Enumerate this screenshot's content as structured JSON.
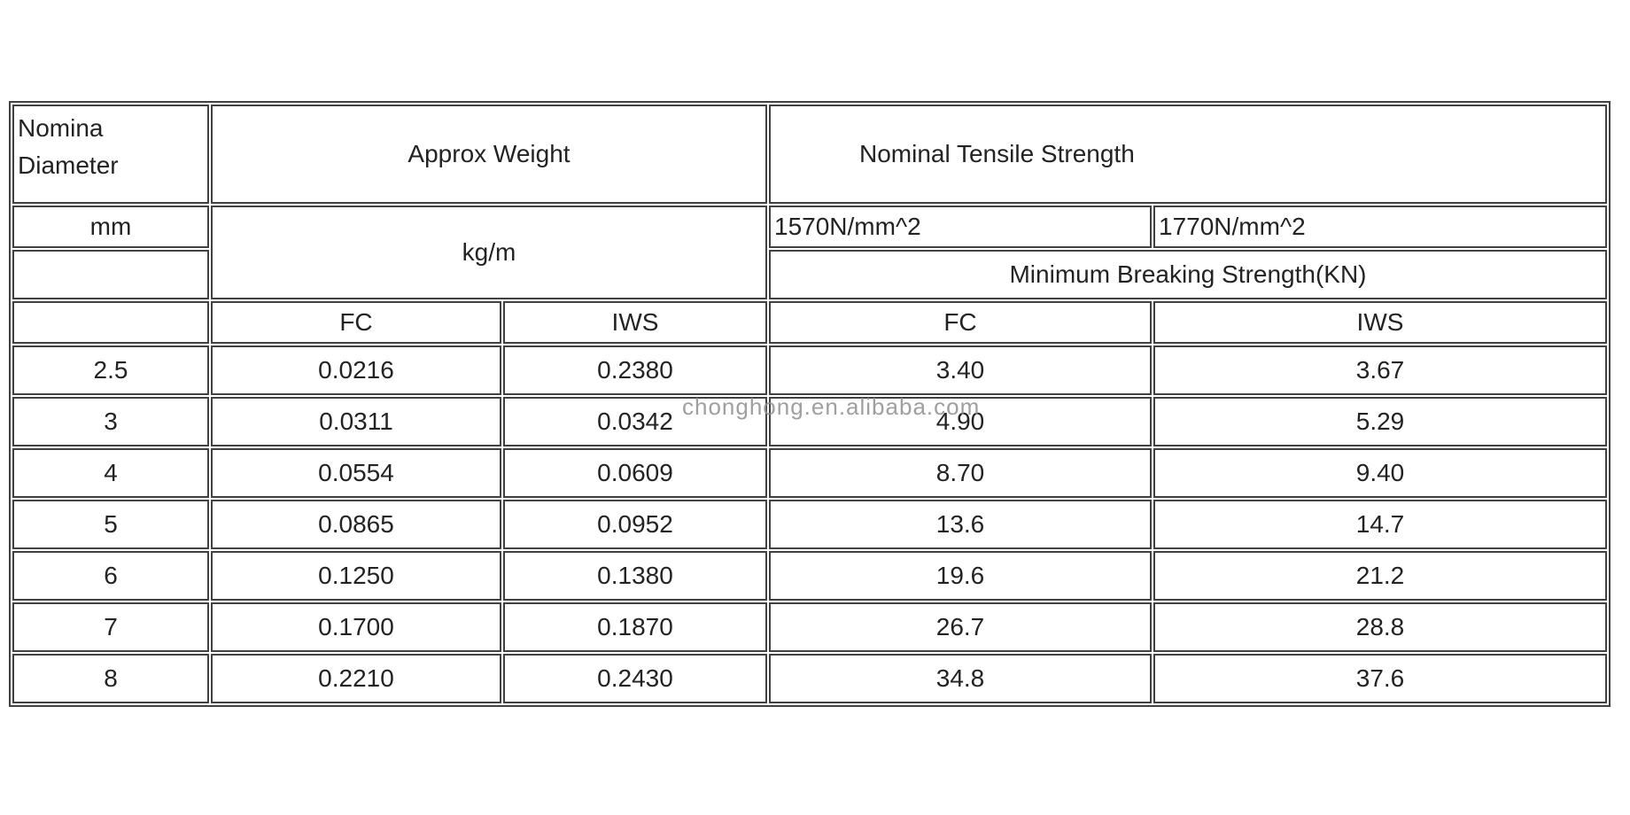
{
  "page": {
    "watermark": "chonghong.en.alibaba.com"
  },
  "colors": {
    "border": "#414141",
    "text": "#232323",
    "watermark": "#8f8f8f"
  },
  "table": {
    "headers": {
      "diameter_line1": "Nomina",
      "diameter_line2": "Diameter",
      "approx_weight": "Approx Weight",
      "tensile_strength": "Nominal Tensile Strength",
      "diameter_unit": "mm",
      "weight_unit": "kg/m",
      "grade_1570": "1570N/mm^2",
      "grade_1770": "1770N/mm^2",
      "breaking_strength": "Minimum Breaking Strength(KN)",
      "weight_fc": "FC",
      "weight_iws": "IWS",
      "strength_fc": "FC",
      "strength_iws": "IWS"
    },
    "rows": [
      {
        "diameter": "2.5",
        "weight_fc": "0.0216",
        "weight_iws": "0.2380",
        "strength_fc": "3.40",
        "strength_iws": "3.67"
      },
      {
        "diameter": "3",
        "weight_fc": "0.0311",
        "weight_iws": "0.0342",
        "strength_fc": "4.90",
        "strength_iws": "5.29"
      },
      {
        "diameter": "4",
        "weight_fc": "0.0554",
        "weight_iws": "0.0609",
        "strength_fc": "8.70",
        "strength_iws": "9.40"
      },
      {
        "diameter": "5",
        "weight_fc": "0.0865",
        "weight_iws": "0.0952",
        "strength_fc": "13.6",
        "strength_iws": "14.7"
      },
      {
        "diameter": "6",
        "weight_fc": "0.1250",
        "weight_iws": "0.1380",
        "strength_fc": "19.6",
        "strength_iws": "21.2"
      },
      {
        "diameter": "7",
        "weight_fc": "0.1700",
        "weight_iws": "0.1870",
        "strength_fc": "26.7",
        "strength_iws": "28.8"
      },
      {
        "diameter": "8",
        "weight_fc": "0.2210",
        "weight_iws": "0.2430",
        "strength_fc": "34.8",
        "strength_iws": "37.6"
      }
    ]
  }
}
